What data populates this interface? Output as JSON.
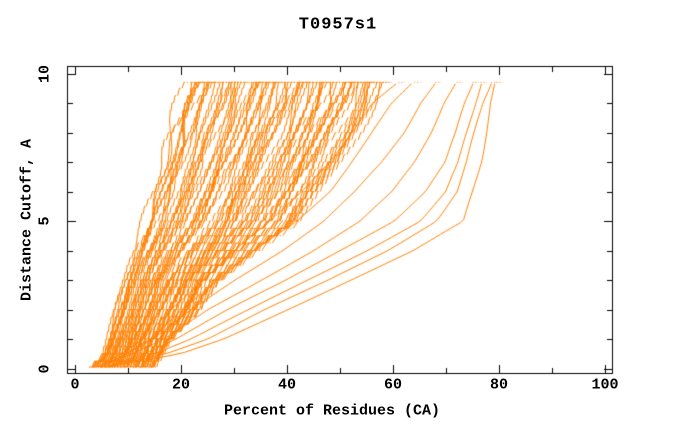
{
  "page": {
    "background": "#ffffff"
  },
  "chart_data": {
    "type": "line",
    "title": "T0957s1",
    "xlabel": "Percent of Residues (CA)",
    "ylabel": "Distance Cutoff, A",
    "xlim": [
      0,
      101.5
    ],
    "ylim": [
      0,
      10.25
    ],
    "grid": false,
    "legend": null,
    "axis_color": "#000000",
    "series_color": "#FF8000",
    "x_ticks": {
      "major": [
        0,
        20,
        40,
        60,
        80,
        100
      ],
      "minor": [
        10,
        30,
        50,
        70,
        90
      ]
    },
    "y_ticks": {
      "major": [
        0,
        5,
        10
      ],
      "minor": [
        1,
        2,
        3,
        4,
        6,
        7,
        8,
        9
      ]
    },
    "curve_top_y": 9.7,
    "curve_count_estimate": 88,
    "band": {
      "description": "Dense bundle of overlapping model curves: cumulative percent of CA residues under each distance cutoff",
      "count": 80,
      "y_levels": [
        0.05,
        0.5,
        1,
        2,
        3,
        4,
        5,
        6,
        7,
        8,
        9,
        9.7
      ],
      "x_left": [
        2.5,
        5,
        6,
        7.5,
        9,
        11,
        13,
        14.8,
        16.5,
        18,
        19.8,
        21
      ],
      "x_right": [
        15,
        16.5,
        18,
        23.5,
        27,
        34,
        42,
        46,
        50,
        53.5,
        56.5,
        58
      ]
    },
    "outlier_curves": [
      {
        "x": [
          6,
          20,
          28,
          40,
          52,
          64,
          73.5,
          75,
          76.5,
          77.5,
          78.5,
          79.5
        ]
      },
      {
        "x": [
          6,
          17,
          25,
          36,
          48,
          59,
          68,
          72,
          74,
          75.5,
          77,
          78.5
        ]
      },
      {
        "x": [
          5.5,
          15,
          22,
          33,
          44,
          55,
          65,
          70,
          72.5,
          74,
          75.5,
          76.5
        ]
      },
      {
        "x": [
          5.5,
          13,
          19,
          29,
          40,
          50,
          60,
          66,
          70,
          72,
          73.5,
          75
        ]
      },
      {
        "x": [
          5,
          11,
          17,
          25,
          35,
          45,
          54,
          60,
          64,
          67,
          69.5,
          72
        ]
      },
      {
        "x": [
          5,
          10,
          15,
          22,
          30,
          39,
          47,
          53,
          58,
          62,
          65,
          68
        ]
      },
      {
        "x": [
          5,
          9.5,
          14,
          20,
          27,
          34,
          42,
          48,
          52,
          56,
          60,
          64
        ]
      },
      {
        "x": [
          4.5,
          9,
          13,
          18,
          24,
          30,
          37,
          43,
          48,
          52,
          56,
          61
        ]
      }
    ]
  }
}
